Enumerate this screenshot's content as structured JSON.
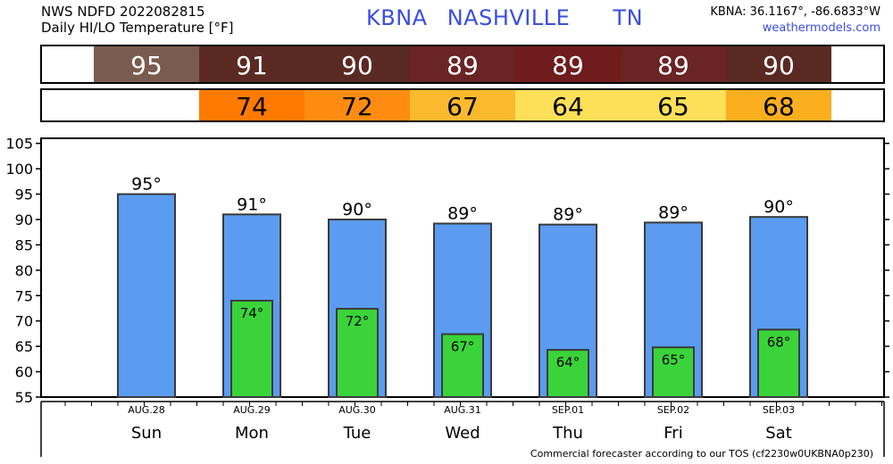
{
  "header": {
    "product": "NWS NDFD 2022082815",
    "subtitle": "Daily HI/LO Temperature [°F]",
    "station_id": "KBNA",
    "station_name": "NASHVILLE",
    "state": "TN",
    "coords": "KBNA: 36.1167°, -86.6833°W",
    "site": "weathermodels.com"
  },
  "footer": {
    "note": "Commercial forecaster according to our TOS (cf2230w0UKBNA0p230)"
  },
  "colors": {
    "hi_bar": "#5b9cf0",
    "lo_bar": "#3ad43a",
    "bar_edge": "#3a3a3a",
    "hi_cells": [
      "#7a5c4e",
      "#5a2a22",
      "#5a2a22",
      "#6a2424",
      "#701c1c",
      "#6a2424",
      "#5a2a22"
    ],
    "lo_cells": [
      "#ff7a00",
      "#ff8c10",
      "#fbb92e",
      "#fde058",
      "#fde058",
      "#fbae1e"
    ]
  },
  "chart_data": {
    "type": "bar",
    "title": "Daily HI/LO Temperature [°F]",
    "categories": [
      "AUG.28",
      "AUG.29",
      "AUG.30",
      "AUG.31",
      "SEP.01",
      "SEP.02",
      "SEP.03"
    ],
    "days": [
      "Sun",
      "Mon",
      "Tue",
      "Wed",
      "Thu",
      "Fri",
      "Sat"
    ],
    "series": [
      {
        "name": "HI",
        "values": [
          95,
          91,
          90,
          89,
          89,
          89,
          90
        ],
        "plot_values": [
          95,
          91,
          90,
          89.2,
          89,
          89.4,
          90.5
        ]
      },
      {
        "name": "LO",
        "values": [
          null,
          74,
          72,
          67,
          64,
          65,
          68
        ],
        "plot_values": [
          null,
          74,
          72.4,
          67.4,
          64.3,
          64.8,
          68.3
        ]
      }
    ],
    "ylim": [
      55,
      106
    ],
    "yticks": [
      55,
      60,
      65,
      70,
      75,
      80,
      85,
      90,
      95,
      100,
      105
    ],
    "xlabel": "",
    "ylabel": "",
    "grid": false,
    "legend": "none"
  }
}
